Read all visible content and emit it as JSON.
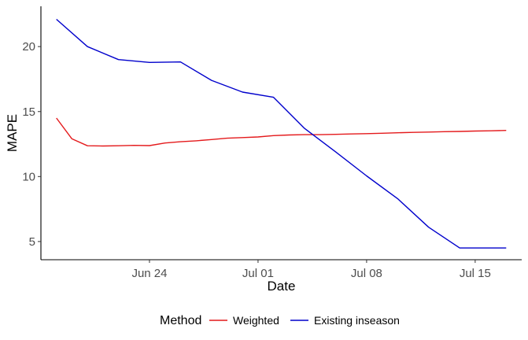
{
  "chart_data": {
    "type": "line",
    "xlabel": "Date",
    "ylabel": "MAPE",
    "x_ticks": [
      "Jun 24",
      "Jul 01",
      "Jul 08",
      "Jul 15"
    ],
    "x_tick_dates": [
      "2024-06-24",
      "2024-07-01",
      "2024-07-08",
      "2024-07-15"
    ],
    "xlim": [
      "2024-06-17",
      "2024-07-18"
    ],
    "y_ticks": [
      5,
      10,
      15,
      20
    ],
    "ylim": [
      3.6,
      23.1
    ],
    "grid": false,
    "legend": {
      "title": "Method",
      "position": "bottom"
    },
    "series": [
      {
        "name": "Weighted",
        "color": "#e41a1c",
        "x": [
          "2024-06-18",
          "2024-06-19",
          "2024-06-20",
          "2024-06-21",
          "2024-06-22",
          "2024-06-23",
          "2024-06-24",
          "2024-06-25",
          "2024-06-26",
          "2024-06-27",
          "2024-06-28",
          "2024-06-29",
          "2024-06-30",
          "2024-07-01",
          "2024-07-02",
          "2024-07-03",
          "2024-07-04",
          "2024-07-05",
          "2024-07-06",
          "2024-07-07",
          "2024-07-08",
          "2024-07-09",
          "2024-07-10",
          "2024-07-11",
          "2024-07-12",
          "2024-07-13",
          "2024-07-14",
          "2024-07-15",
          "2024-07-16",
          "2024-07-17"
        ],
        "y": [
          14.5,
          12.9,
          12.37,
          12.35,
          12.37,
          12.4,
          12.38,
          12.58,
          12.68,
          12.75,
          12.85,
          12.95,
          13.0,
          13.05,
          13.15,
          13.2,
          13.22,
          13.22,
          13.25,
          13.28,
          13.3,
          13.33,
          13.37,
          13.4,
          13.42,
          13.45,
          13.47,
          13.5,
          13.52,
          13.55
        ]
      },
      {
        "name": "Existing inseason",
        "color": "#0000cc",
        "x": [
          "2024-06-18",
          "2024-06-20",
          "2024-06-22",
          "2024-06-24",
          "2024-06-26",
          "2024-06-28",
          "2024-06-30",
          "2024-07-02",
          "2024-07-04",
          "2024-07-06",
          "2024-07-08",
          "2024-07-10",
          "2024-07-12",
          "2024-07-14",
          "2024-07-16",
          "2024-07-17"
        ],
        "y": [
          22.1,
          20.0,
          19.0,
          18.78,
          18.82,
          17.4,
          16.5,
          16.1,
          13.7,
          11.9,
          10.05,
          8.3,
          6.1,
          4.5,
          4.5,
          4.5
        ]
      }
    ]
  }
}
